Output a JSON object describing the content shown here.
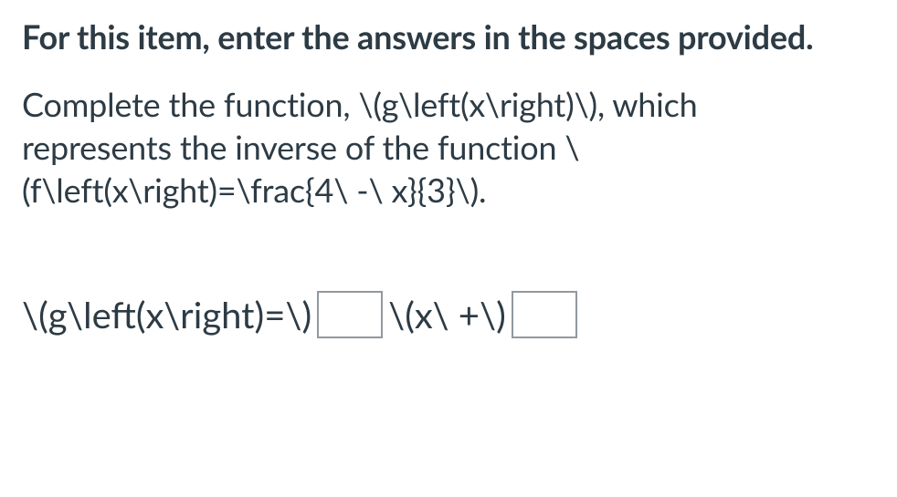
{
  "instruction": "For this item, enter the answers in the spaces provided.",
  "prompt_line1": "Complete the function, \\(g\\left(x\\right)\\), which",
  "prompt_line2": "represents the inverse of the function \\",
  "prompt_line3": "(f\\left(x\\right)=\\frac{4\\ -\\ x}{3}\\).",
  "answer": {
    "prefix": "\\(g\\left(x\\right)=\\) ",
    "mid": "\\(x\\ +\\)",
    "blank1_value": "",
    "blank2_value": ""
  },
  "colors": {
    "text": "#2d3b45",
    "background": "#ffffff",
    "input_border": "#92989e"
  }
}
